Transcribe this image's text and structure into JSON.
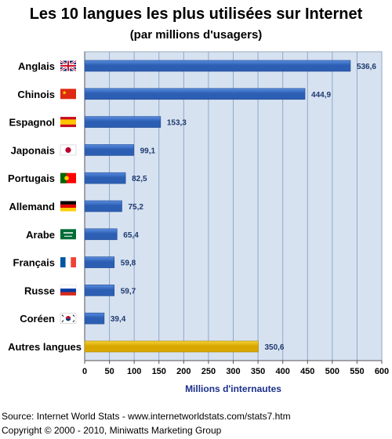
{
  "chart_data": {
    "type": "bar",
    "orientation": "horizontal",
    "title": "Les 10 langues les plus utilisées sur Internet",
    "subtitle": "(par millions d'usagers)",
    "xlabel": "Millions d'internautes",
    "ylabel": "",
    "xlim": [
      0,
      600
    ],
    "xticks": [
      0,
      50,
      100,
      150,
      200,
      250,
      300,
      350,
      400,
      450,
      500,
      550,
      600
    ],
    "grid": true,
    "categories": [
      "Anglais",
      "Chinois",
      "Espagnol",
      "Japonais",
      "Portugais",
      "Allemand",
      "Arabe",
      "Français",
      "Russe",
      "Coréen",
      "Autres langues"
    ],
    "values": [
      536.6,
      444.9,
      153.3,
      99.1,
      82.5,
      75.2,
      65.4,
      59.8,
      59.7,
      39.4,
      350.6
    ],
    "value_labels": [
      "536,6",
      "444,9",
      "153,3",
      "99,1",
      "82,5",
      "75,2",
      "65,4",
      "59,8",
      "59,7",
      "39,4",
      "350,6"
    ],
    "flag_icons": [
      "uk-flag-icon",
      "china-flag-icon",
      "spain-flag-icon",
      "japan-flag-icon",
      "portugal-flag-icon",
      "germany-flag-icon",
      "saudi-flag-icon",
      "france-flag-icon",
      "russia-flag-icon",
      "korea-flag-icon",
      ""
    ],
    "colors": {
      "bar": "#2c5fb3",
      "bar_light": "#5a8de0",
      "other_bar": "#d9a800",
      "other_bar_light": "#f4d23a",
      "plot_bg": "#d7e2f1",
      "grid": "#8fa8cc",
      "value_label": "#1f3a6e",
      "axis_title": "#1a2f8a"
    }
  },
  "footer": {
    "source": "Source: Internet World Stats - www.internetworldstats.com/stats7.htm",
    "copyright": "Copyright © 2000 - 2010, Miniwatts Marketing Group"
  }
}
